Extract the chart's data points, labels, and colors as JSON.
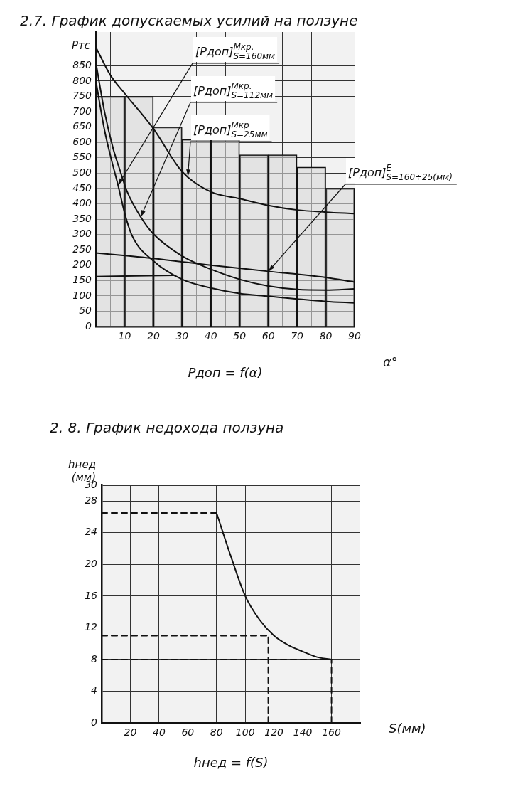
{
  "chart_data": [
    {
      "type": "line",
      "title": "2.7. График допускаемых усилий на ползуне",
      "ylabel": "Ртс",
      "xlabel": "α°",
      "xlim": [
        0,
        90
      ],
      "xticks": [
        10,
        20,
        30,
        40,
        50,
        60,
        70,
        80,
        90
      ],
      "ylim": [
        0,
        960
      ],
      "yticks": [
        0,
        50,
        100,
        150,
        200,
        250,
        300,
        350,
        400,
        450,
        500,
        550,
        600,
        650,
        700,
        750,
        800,
        850
      ],
      "grid": true,
      "marker": "none",
      "annotations": [
        "Рдоп = f(α)",
        {
          "text": "[Рдоп]$^{Мкр.}$$_{S=160мм}$",
          "x": 7.7,
          "y": 461
        },
        {
          "text": "[Рдоп]$^{Мкр.}$$_{S=112мм}$",
          "x": 15.6,
          "y": 357
        },
        {
          "text": "[Рдоп]$^{Мкр}$$_{S=25мм}$",
          "x": 32,
          "y": 490
        },
        {
          "text": "[Рдоп]$^{E}$$_{S=160÷25(мм)}$",
          "x": 60,
          "y": 180
        }
      ],
      "series": [
        {
          "type": "bar",
          "x": [
            5,
            15,
            25,
            35,
            45,
            55,
            65,
            75,
            85
          ],
          "values": [
            750,
            750,
            650,
            610,
            610,
            560,
            560,
            520,
            450
          ],
          "color": "#d9d9d9"
        },
        {
          "type": "line",
          "x": [
            0,
            5,
            10,
            20,
            30,
            40,
            50,
            60,
            70,
            80,
            90
          ],
          "values": [
            910,
            820,
            760,
            645,
            505,
            439,
            417,
            395,
            380,
            373,
            368
          ],
          "color": "#111111"
        },
        {
          "type": "line",
          "x": [
            0,
            3,
            6,
            8,
            10.9,
            15.6,
            20,
            30,
            40,
            50,
            60,
            70,
            80,
            90
          ],
          "values": [
            860,
            700,
            580,
            520,
            439,
            357,
            302,
            230,
            187,
            154,
            132,
            121,
            119,
            123
          ],
          "color": "#111111"
        },
        {
          "type": "line",
          "x": [
            0,
            3,
            5.5,
            7.7,
            10,
            12.6,
            20,
            30,
            40,
            50,
            60,
            70,
            80,
            90
          ],
          "values": [
            800,
            640,
            540,
            461,
            370,
            296,
            214,
            154,
            126,
            108,
            99,
            90,
            82,
            77
          ],
          "color": "#111111"
        },
        {
          "type": "line",
          "x": [
            0,
            20,
            40,
            60,
            80,
            90
          ],
          "values": [
            240,
            222,
            200,
            180,
            160,
            145
          ],
          "color": "#111111"
        },
        {
          "type": "line",
          "x": [
            0,
            27
          ],
          "values": [
            163,
            167
          ],
          "color": "#111111"
        }
      ]
    },
    {
      "type": "line",
      "title": "2. 8. График недохода ползуна",
      "ylabel": "hнед (мм)",
      "xlabel": "S(мм)",
      "xlim": [
        0,
        180
      ],
      "xticks": [
        20,
        40,
        60,
        80,
        100,
        120,
        140,
        160
      ],
      "ylim": [
        0,
        30
      ],
      "yticks": [
        0,
        4,
        8,
        12,
        16,
        20,
        24,
        28,
        30
      ],
      "grid": true,
      "marker": "none",
      "annotations": [
        "hнед = f(S)"
      ],
      "series": [
        {
          "type": "line",
          "x": [
            80,
            90,
            100,
            110,
            120,
            130,
            140,
            150,
            160
          ],
          "values": [
            26.5,
            21,
            16,
            13,
            11,
            9.8,
            9,
            8.3,
            8
          ],
          "color": "#111111"
        },
        {
          "type": "line",
          "x": [
            0,
            80
          ],
          "values": [
            26.5,
            26.5
          ],
          "color": "#111111",
          "line_style": "dashed"
        },
        {
          "type": "line",
          "x": [
            0,
            116
          ],
          "values": [
            11,
            11
          ],
          "color": "#111111",
          "line_style": "dashed"
        },
        {
          "type": "line",
          "x": [
            0,
            160
          ],
          "values": [
            8,
            8
          ],
          "color": "#111111",
          "line_style": "dashed"
        },
        {
          "type": "line",
          "x": [
            116,
            116
          ],
          "values": [
            0,
            11
          ],
          "color": "#111111",
          "line_style": "dashed"
        },
        {
          "type": "line",
          "x": [
            160,
            160
          ],
          "values": [
            0,
            8
          ],
          "color": "#111111",
          "line_style": "dashed"
        }
      ]
    }
  ]
}
